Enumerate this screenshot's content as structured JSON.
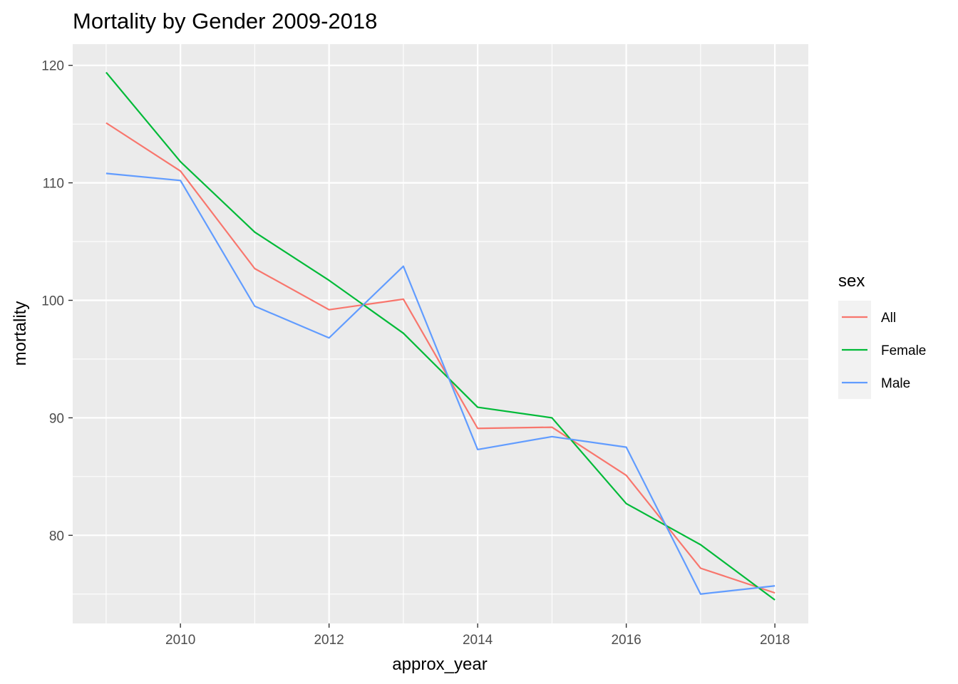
{
  "chart_data": {
    "type": "line",
    "title": "Mortality by Gender 2009-2018",
    "xlabel": "approx_year",
    "ylabel": "mortality",
    "x": [
      2009,
      2010,
      2011,
      2012,
      2013,
      2014,
      2015,
      2016,
      2017,
      2018
    ],
    "xlim": [
      2008.55,
      2018.45
    ],
    "ylim": [
      72.5,
      121.8
    ],
    "x_ticks": [
      2010,
      2012,
      2014,
      2016,
      2018
    ],
    "y_ticks": [
      80,
      90,
      100,
      110,
      120
    ],
    "grid": true,
    "legend": {
      "title": "sex",
      "position": "right"
    },
    "series": [
      {
        "name": "All",
        "color": "#F8766D",
        "values": [
          115.1,
          111.0,
          102.7,
          99.2,
          100.1,
          89.1,
          89.2,
          85.1,
          77.2,
          75.1
        ]
      },
      {
        "name": "Female",
        "color": "#00BA38",
        "values": [
          119.4,
          111.8,
          105.8,
          101.7,
          97.2,
          90.9,
          90.0,
          82.7,
          79.2,
          74.5
        ]
      },
      {
        "name": "Male",
        "color": "#619CFF",
        "values": [
          110.8,
          110.2,
          99.5,
          96.8,
          102.9,
          87.3,
          88.4,
          87.5,
          75.0,
          75.7
        ]
      }
    ]
  }
}
